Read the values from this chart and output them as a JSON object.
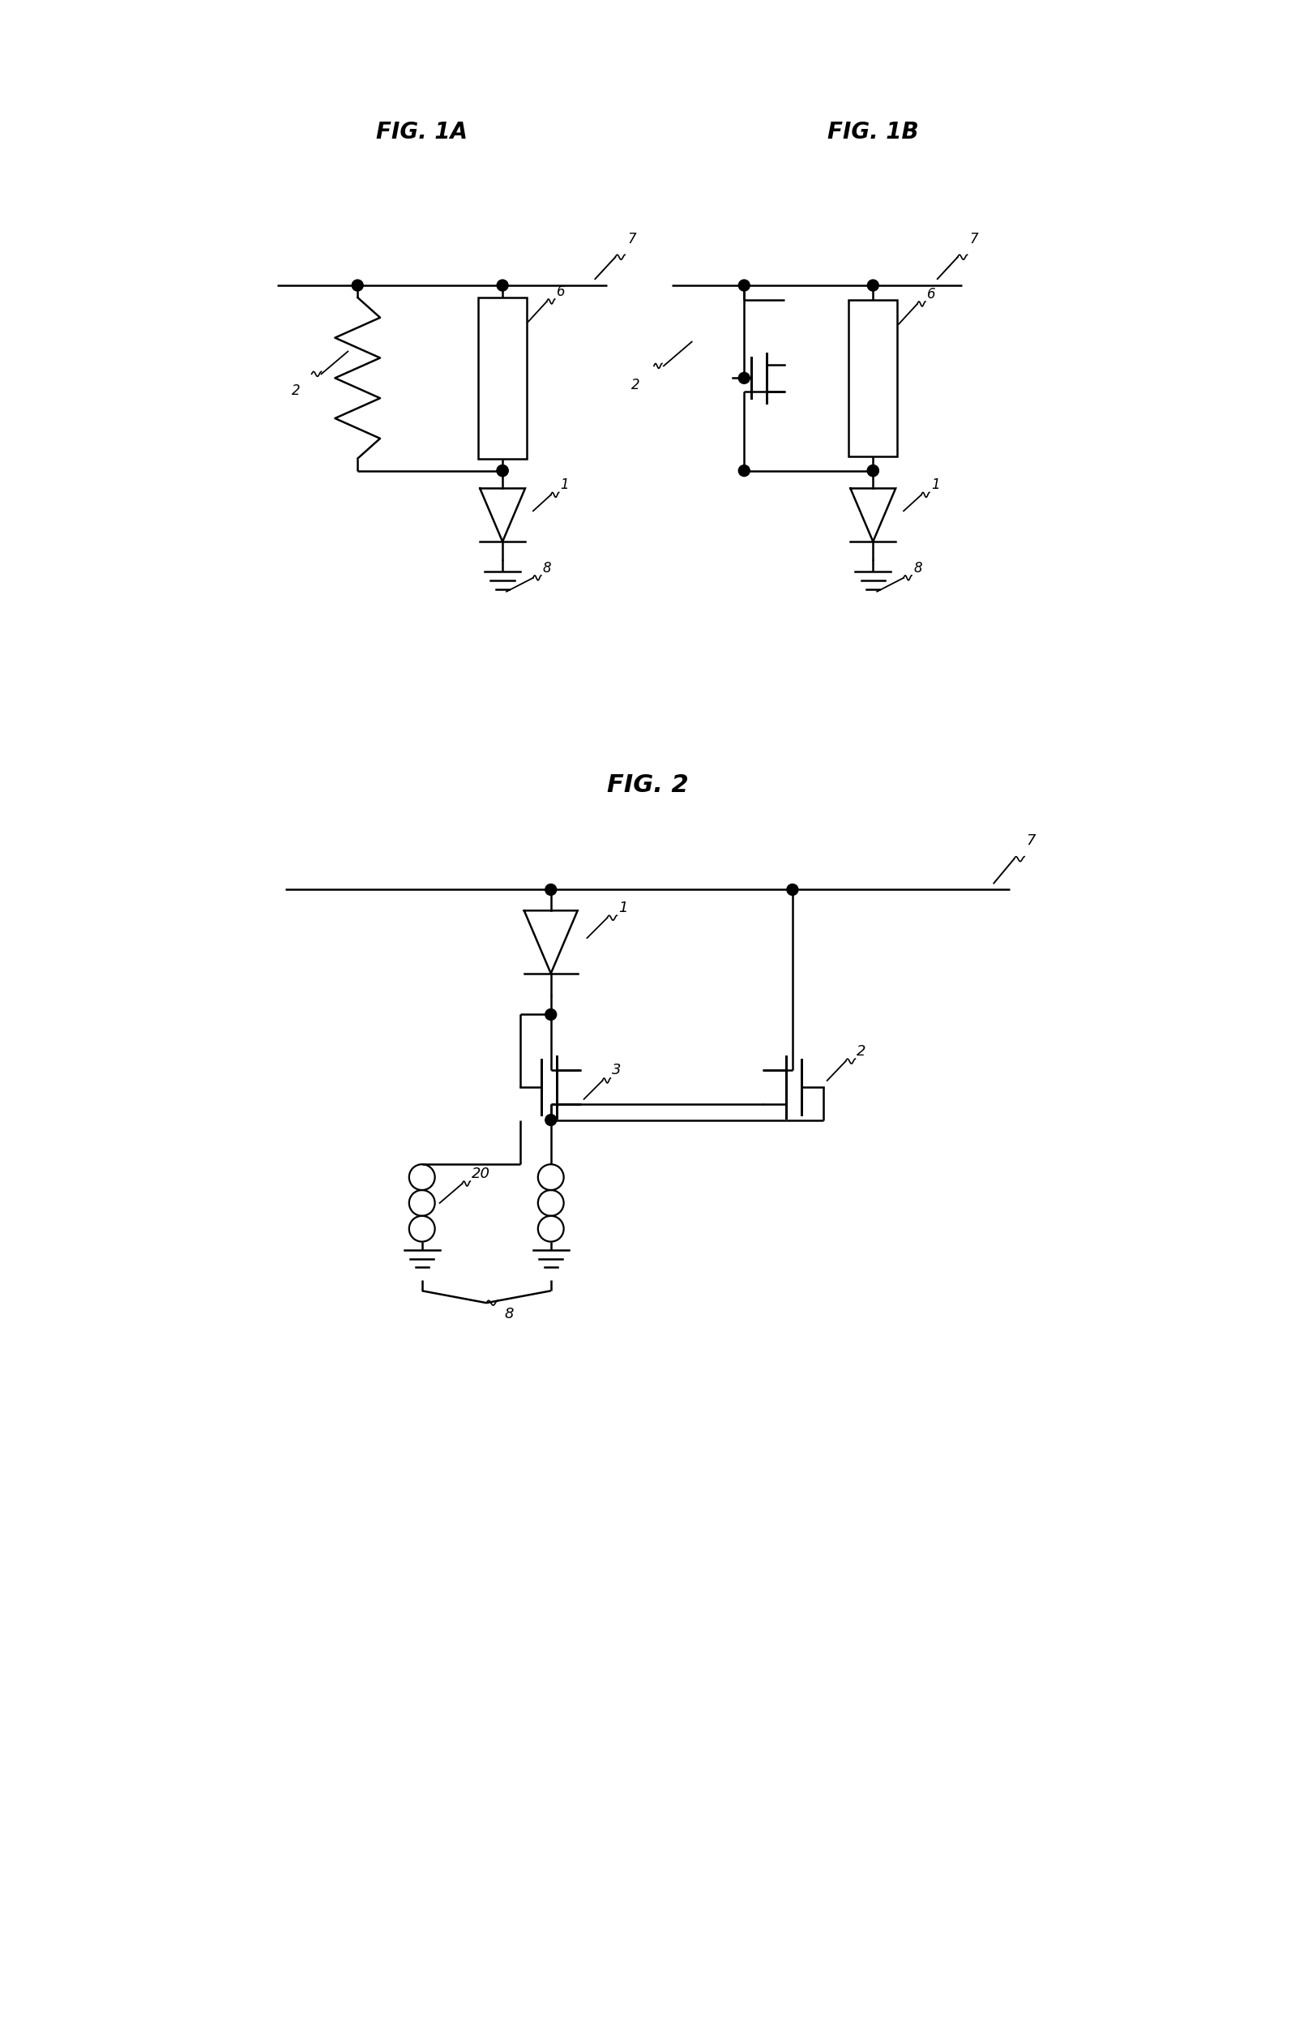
{
  "bg_color": "#ffffff",
  "line_color": "#000000",
  "fig_width": 15.98,
  "fig_height": 24.93,
  "title_1a": "FIG. 1A",
  "title_1b": "FIG. 1B",
  "title_2": "FIG. 2"
}
